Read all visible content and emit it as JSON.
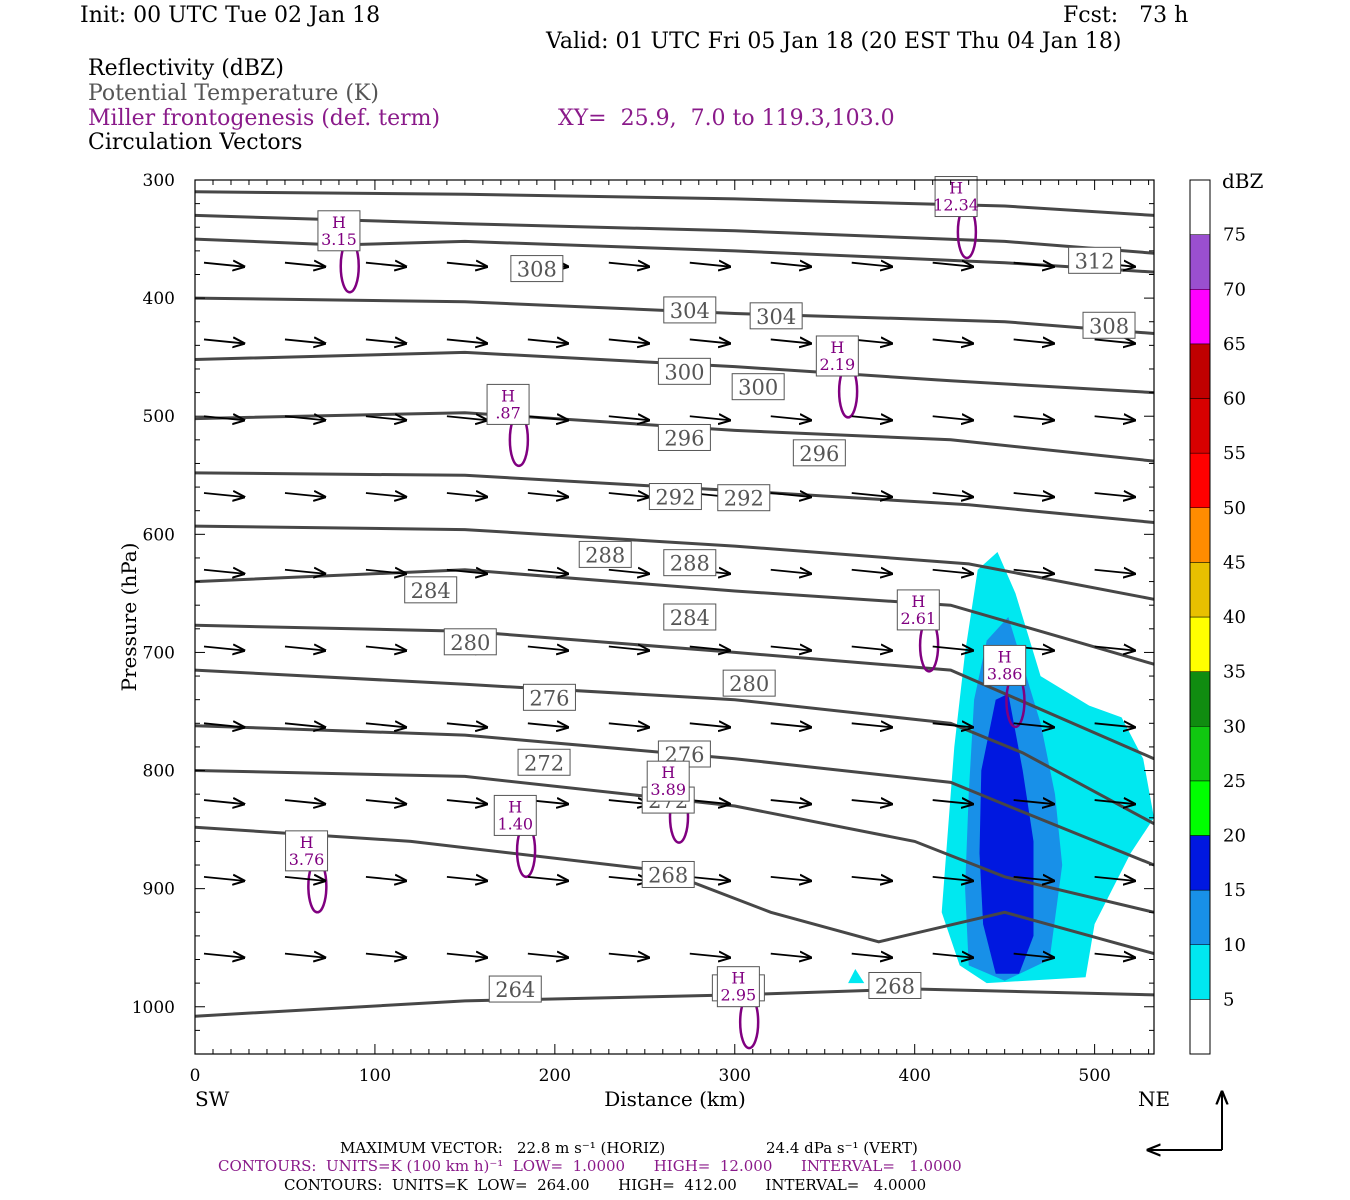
{
  "header": {
    "init": "Init: 00 UTC Tue 02 Jan 18",
    "fcst": "Fcst:   73 h",
    "valid": "Valid: 01 UTC Fri 05 Jan 18 (20 EST Thu 04 Jan 18)",
    "field_reflectivity": "Reflectivity (dBZ)",
    "field_theta": "Potential Temperature (K)",
    "field_fronto": "Miller frontogenesis (def. term)",
    "xy_range": "XY=  25.9,  7.0 to 119.3,103.0",
    "field_vectors": "Circulation Vectors"
  },
  "footer": {
    "max_vector_label": "MAXIMUM VECTOR:",
    "max_horiz": "22.8 m s⁻¹ (HORIZ)",
    "max_vert": "24.4 dPa s⁻¹ (VERT)",
    "contours_fronto": "CONTOURS:  UNITS=K (100 km h)⁻¹  LOW=  1.0000      HIGH=  12.000      INTERVAL=   1.0000",
    "contours_theta": "CONTOURS:  UNITS=K  LOW=  264.00      HIGH=  412.00      INTERVAL=   4.0000"
  },
  "colors": {
    "theta": "#474747",
    "fronto": "#800080",
    "vectors": "#000000"
  },
  "chart_data": {
    "type": "cross-section",
    "xlabel": "Distance (km)",
    "ylabel": "Pressure (hPa)",
    "xlim": [
      0,
      533
    ],
    "ylim": [
      1040,
      300
    ],
    "x_ticks": [
      0,
      100,
      200,
      300,
      400,
      500
    ],
    "y_ticks": [
      300,
      400,
      500,
      600,
      700,
      800,
      900,
      1000
    ],
    "end_labels": {
      "left": "SW",
      "right": "NE"
    },
    "colorbar": {
      "unit": "dBZ",
      "levels": [
        5,
        10,
        15,
        20,
        25,
        30,
        35,
        40,
        45,
        50,
        55,
        60,
        65,
        70,
        75
      ],
      "colors": [
        "#ffffff",
        "#00e8f0",
        "#1890e8",
        "#0018e0",
        "#00ff00",
        "#10c810",
        "#108c10",
        "#ffff00",
        "#e8c000",
        "#ff8c00",
        "#ff0000",
        "#d80000",
        "#c00000",
        "#ff00ff",
        "#9a4fd0",
        "#ffffff"
      ]
    },
    "theta_labels": [
      {
        "v": "308",
        "x": 190,
        "p": 375
      },
      {
        "v": "312",
        "x": 500,
        "p": 368
      },
      {
        "v": "308",
        "x": 508,
        "p": 423
      },
      {
        "v": "304",
        "x": 275,
        "p": 410
      },
      {
        "v": "304",
        "x": 323,
        "p": 415
      },
      {
        "v": "300",
        "x": 272,
        "p": 462
      },
      {
        "v": "300",
        "x": 313,
        "p": 475
      },
      {
        "v": "296",
        "x": 272,
        "p": 518
      },
      {
        "v": "296",
        "x": 347,
        "p": 531
      },
      {
        "v": "292",
        "x": 267,
        "p": 568
      },
      {
        "v": "292",
        "x": 305,
        "p": 569
      },
      {
        "v": "288",
        "x": 228,
        "p": 617
      },
      {
        "v": "288",
        "x": 275,
        "p": 624
      },
      {
        "v": "284",
        "x": 131,
        "p": 647
      },
      {
        "v": "284",
        "x": 275,
        "p": 670
      },
      {
        "v": "280",
        "x": 153,
        "p": 691
      },
      {
        "v": "280",
        "x": 308,
        "p": 726
      },
      {
        "v": "276",
        "x": 197,
        "p": 738
      },
      {
        "v": "276",
        "x": 272,
        "p": 786
      },
      {
        "v": "272",
        "x": 194,
        "p": 793
      },
      {
        "v": "272",
        "x": 263,
        "p": 825
      },
      {
        "v": "268",
        "x": 263,
        "p": 888
      },
      {
        "v": "264",
        "x": 178,
        "p": 985
      },
      {
        "v": "268",
        "x": 302,
        "p": 984
      },
      {
        "v": "268",
        "x": 389,
        "p": 982
      }
    ],
    "fronto_maxima": [
      {
        "v": "3.15",
        "x": 80,
        "p": 343
      },
      {
        "v": "12.34",
        "x": 423,
        "p": 314
      },
      {
        "v": "2.19",
        "x": 357,
        "p": 449
      },
      {
        "v": ".87",
        "x": 174,
        "p": 490
      },
      {
        "v": "2.61",
        "x": 402,
        "p": 664
      },
      {
        "v": "3.86",
        "x": 450,
        "p": 711
      },
      {
        "v": "3.89",
        "x": 263,
        "p": 809
      },
      {
        "v": "1.40",
        "x": 178,
        "p": 838
      },
      {
        "v": "3.76",
        "x": 62,
        "p": 868
      },
      {
        "v": "2.95",
        "x": 302,
        "p": 983
      }
    ],
    "maxima_marker": "H"
  }
}
